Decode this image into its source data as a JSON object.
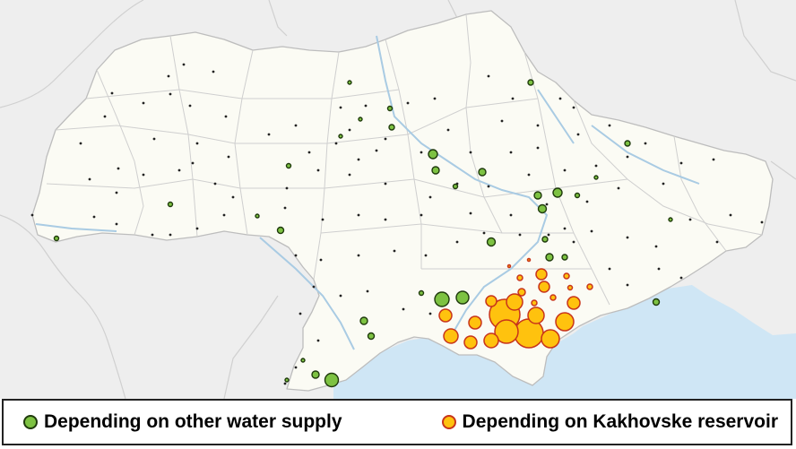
{
  "legend": {
    "other_label": "Depending on other water supply",
    "kakhovka_label": "Depending on Kakhovske reservoir"
  },
  "colors": {
    "background": "#eeeeee",
    "sea": "#cfe6f5",
    "land_ukraine": "#fbfbf4",
    "land_outside": "#e9e9e9",
    "borders": "#c8c8c8",
    "rivers": "#a9cbe3",
    "other_fill": "#7dc242",
    "other_stroke": "#1f3a0c",
    "kakhovka_fill": "#ffc20e",
    "kakhovka_stroke": "#c8341a",
    "dot": "#222222"
  }
}
